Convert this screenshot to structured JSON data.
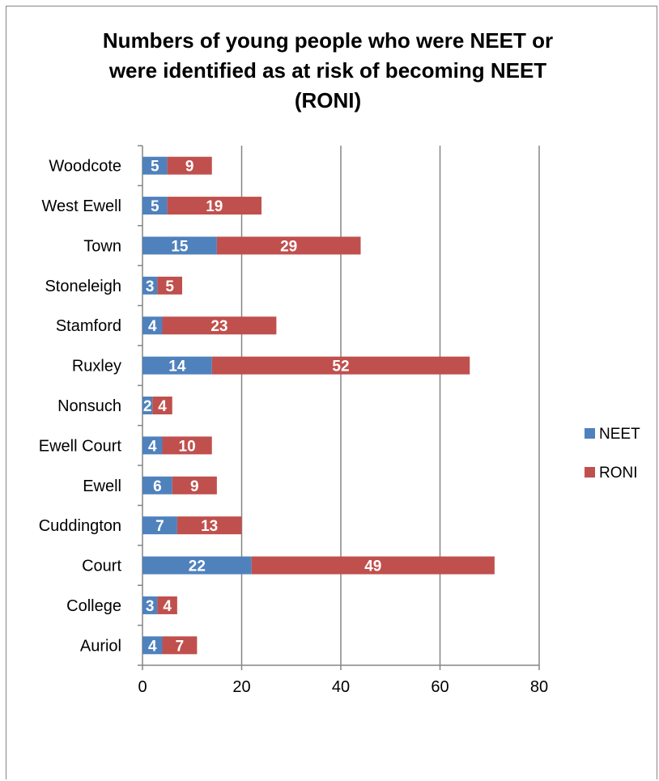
{
  "chart_data": {
    "type": "bar",
    "orientation": "horizontal",
    "stacked": true,
    "title": "Numbers of young people who were NEET or were identified as at risk of becoming NEET (RONI)",
    "title_lines": [
      "Numbers of young people who were NEET or",
      "were identified as at risk of becoming NEET",
      "(RONI)"
    ],
    "categories": [
      "Woodcote",
      "West Ewell",
      "Town",
      "Stoneleigh",
      "Stamford",
      "Ruxley",
      "Nonsuch",
      "Ewell Court",
      "Ewell",
      "Cuddington",
      "Court",
      "College",
      "Auriol"
    ],
    "series": [
      {
        "name": "NEET",
        "color": "#4f81bd",
        "values": [
          5,
          5,
          15,
          3,
          4,
          14,
          2,
          4,
          6,
          7,
          22,
          3,
          4
        ]
      },
      {
        "name": "RONI",
        "color": "#c0504d",
        "values": [
          9,
          19,
          29,
          5,
          23,
          52,
          4,
          10,
          9,
          13,
          49,
          4,
          7
        ]
      }
    ],
    "xlim": [
      0,
      80
    ],
    "xticks": [
      "0",
      "20",
      "40",
      "60",
      "80"
    ],
    "grid": "vertical",
    "legend": "right",
    "data_labels": true
  }
}
